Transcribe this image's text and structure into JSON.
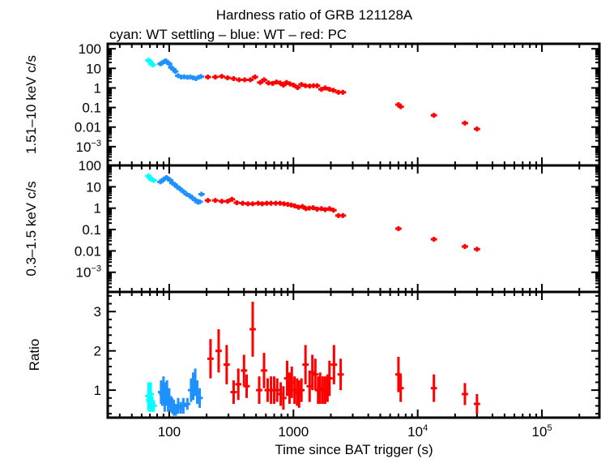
{
  "chart_data": {
    "type": "scatter",
    "title": "Hardness ratio of GRB 121128A",
    "subtitle": "cyan: WT settling – blue: WT – red: PC",
    "xlabel": "Time since BAT trigger (s)",
    "xscale": "log",
    "xlim": [
      32,
      290000
    ],
    "x_ticks": [
      {
        "v": 100,
        "label": "100"
      },
      {
        "v": 1000,
        "label": "1000"
      },
      {
        "v": 10000,
        "label": "10",
        "sup": "4"
      },
      {
        "v": 100000,
        "label": "10",
        "sup": "5"
      }
    ],
    "colors": {
      "cyan": "#00ffff",
      "blue": "#1e90ff",
      "red": "#ff0000"
    },
    "panels": [
      {
        "name": "hard",
        "ylabel": "1.51–10 keV c/s",
        "yscale": "log",
        "ylim": [
          0.00011,
          180
        ],
        "y_ticks": [
          {
            "v": 100,
            "label": "100"
          },
          {
            "v": 10,
            "label": "10"
          },
          {
            "v": 1,
            "label": "1"
          },
          {
            "v": 0.1,
            "label": "0.1"
          },
          {
            "v": 0.01,
            "label": "0.01"
          },
          {
            "v": 0.001,
            "label": "10",
            "sup": "−3"
          }
        ],
        "series": [
          {
            "name": "WT settling",
            "color": "cyan",
            "points": [
              [
                68,
                26
              ],
              [
                70,
                22
              ],
              [
                72,
                17
              ],
              [
                74,
                15
              ]
            ]
          },
          {
            "name": "WT",
            "color": "blue",
            "points": [
              [
                85,
                17
              ],
              [
                88,
                19
              ],
              [
                91,
                22
              ],
              [
                94,
                24
              ],
              [
                97,
                20
              ],
              [
                100,
                17
              ],
              [
                104,
                11
              ],
              [
                108,
                9
              ],
              [
                112,
                7
              ],
              [
                118,
                4.2
              ],
              [
                125,
                3.6
              ],
              [
                132,
                3.7
              ],
              [
                140,
                3.5
              ],
              [
                148,
                3.6
              ],
              [
                156,
                3.3
              ],
              [
                164,
                3.0
              ],
              [
                172,
                3.5
              ],
              [
                180,
                3.8
              ]
            ]
          },
          {
            "name": "PC",
            "color": "red",
            "points": [
              [
                205,
                3.6
              ],
              [
                235,
                3.6
              ],
              [
                265,
                3.9
              ],
              [
                295,
                3.3
              ],
              [
                330,
                3.0
              ],
              [
                365,
                2.6
              ],
              [
                405,
                2.6
              ],
              [
                450,
                2.6
              ],
              [
                490,
                3.6
              ],
              [
                540,
                1.9
              ],
              [
                580,
                2.6
              ],
              [
                630,
                1.8
              ],
              [
                680,
                1.7
              ],
              [
                730,
                2.0
              ],
              [
                780,
                1.8
              ],
              [
                830,
                1.4
              ],
              [
                880,
                1.9
              ],
              [
                940,
                1.6
              ],
              [
                1000,
                1.4
              ],
              [
                1080,
                1.05
              ],
              [
                1160,
                1.5
              ],
              [
                1250,
                1.3
              ],
              [
                1350,
                1.25
              ],
              [
                1450,
                1.3
              ],
              [
                1550,
                1.3
              ],
              [
                1680,
                0.85
              ],
              [
                1800,
                1.0
              ],
              [
                1950,
                0.85
              ],
              [
                2100,
                0.75
              ],
              [
                2300,
                0.6
              ],
              [
                2500,
                0.6
              ],
              [
                7000,
                0.14
              ],
              [
                7300,
                0.11
              ],
              [
                13500,
                0.04
              ],
              [
                24000,
                0.016
              ],
              [
                30000,
                0.008
              ]
            ]
          }
        ]
      },
      {
        "name": "soft",
        "ylabel": "0.3–1.5 keV c/s",
        "yscale": "log",
        "ylim": [
          0.00012,
          100
        ],
        "y_ticks": [
          {
            "v": 100,
            "label": "100"
          },
          {
            "v": 10,
            "label": "10"
          },
          {
            "v": 1,
            "label": "1"
          },
          {
            "v": 0.1,
            "label": "0.1"
          },
          {
            "v": 0.01,
            "label": "0.01"
          },
          {
            "v": 0.001,
            "label": "10",
            "sup": "−3"
          }
        ],
        "series": [
          {
            "name": "WT settling",
            "color": "cyan",
            "points": [
              [
                68,
                32
              ],
              [
                70,
                26
              ],
              [
                72,
                22
              ],
              [
                75,
                20
              ]
            ]
          },
          {
            "name": "WT",
            "color": "blue",
            "points": [
              [
                85,
                17
              ],
              [
                88,
                20
              ],
              [
                91,
                23
              ],
              [
                95,
                27
              ],
              [
                98,
                24
              ],
              [
                102,
                20
              ],
              [
                106,
                15
              ],
              [
                110,
                13
              ],
              [
                116,
                10
              ],
              [
                122,
                8
              ],
              [
                130,
                6
              ],
              [
                138,
                4.5
              ],
              [
                146,
                3.8
              ],
              [
                154,
                3.0
              ],
              [
                162,
                2.4
              ],
              [
                170,
                1.9
              ],
              [
                176,
                2.0
              ],
              [
                182,
                4.5
              ]
            ]
          },
          {
            "name": "PC",
            "color": "red",
            "points": [
              [
                205,
                2.3
              ],
              [
                235,
                2.3
              ],
              [
                265,
                2.1
              ],
              [
                295,
                2.1
              ],
              [
                320,
                2.6
              ],
              [
                350,
                1.8
              ],
              [
                390,
                1.7
              ],
              [
                430,
                1.6
              ],
              [
                470,
                1.6
              ],
              [
                520,
                1.7
              ],
              [
                560,
                1.6
              ],
              [
                610,
                1.7
              ],
              [
                660,
                1.7
              ],
              [
                720,
                1.7
              ],
              [
                780,
                1.7
              ],
              [
                840,
                1.6
              ],
              [
                900,
                1.5
              ],
              [
                960,
                1.4
              ],
              [
                1020,
                1.3
              ],
              [
                1100,
                1.1
              ],
              [
                1180,
                1.2
              ],
              [
                1260,
                0.95
              ],
              [
                1340,
                1.0
              ],
              [
                1440,
                1.05
              ],
              [
                1550,
                0.9
              ],
              [
                1680,
                0.95
              ],
              [
                1800,
                0.85
              ],
              [
                1950,
                0.95
              ],
              [
                2100,
                0.8
              ],
              [
                2300,
                0.45
              ],
              [
                2500,
                0.45
              ],
              [
                7000,
                0.11
              ],
              [
                13500,
                0.035
              ],
              [
                24000,
                0.016
              ],
              [
                30000,
                0.012
              ]
            ]
          }
        ]
      },
      {
        "name": "ratio",
        "ylabel": "Ratio",
        "yscale": "linear",
        "ylim": [
          0.3,
          3.5
        ],
        "y_ticks": [
          {
            "v": 1,
            "label": "1"
          },
          {
            "v": 2,
            "label": "2"
          },
          {
            "v": 3,
            "label": "3"
          }
        ],
        "series": [
          {
            "name": "WT settling",
            "color": "cyan",
            "points": [
              [
                68,
                0.85,
                0.35
              ],
              [
                69,
                0.75,
                0.3
              ],
              [
                70,
                0.7,
                0.25
              ],
              [
                71,
                0.9,
                0.3
              ],
              [
                73,
                0.65,
                0.2
              ],
              [
                75,
                0.6,
                0.15
              ]
            ]
          },
          {
            "name": "WT",
            "color": "blue",
            "points": [
              [
                86,
                0.95,
                0.3
              ],
              [
                88,
                0.9,
                0.3
              ],
              [
                90,
                1.0,
                0.35
              ],
              [
                92,
                0.75,
                0.3
              ],
              [
                94,
                0.9,
                0.3
              ],
              [
                96,
                0.95,
                0.3
              ],
              [
                98,
                0.7,
                0.25
              ],
              [
                100,
                0.8,
                0.25
              ],
              [
                103,
                0.65,
                0.2
              ],
              [
                106,
                0.6,
                0.2
              ],
              [
                109,
                0.55,
                0.2
              ],
              [
                113,
                0.5,
                0.15
              ],
              [
                118,
                0.6,
                0.2
              ],
              [
                124,
                0.55,
                0.15
              ],
              [
                130,
                0.6,
                0.2
              ],
              [
                140,
                0.65,
                0.15
              ],
              [
                150,
                1.0,
                0.3
              ],
              [
                156,
                1.1,
                0.35
              ],
              [
                162,
                1.2,
                0.35
              ],
              [
                168,
                0.95,
                0.3
              ],
              [
                176,
                0.8,
                0.25
              ]
            ]
          },
          {
            "name": "PC",
            "color": "red",
            "points": [
              [
                215,
                1.8,
                0.5
              ],
              [
                250,
                2.0,
                0.55
              ],
              [
                290,
                1.65,
                0.5
              ],
              [
                330,
                0.95,
                0.3
              ],
              [
                360,
                1.15,
                0.4
              ],
              [
                400,
                1.5,
                0.4
              ],
              [
                420,
                1.1,
                0.3
              ],
              [
                470,
                2.55,
                0.7
              ],
              [
                530,
                1.0,
                0.35
              ],
              [
                580,
                1.5,
                0.45
              ],
              [
                620,
                1.0,
                0.3
              ],
              [
                660,
                1.0,
                0.35
              ],
              [
                700,
                1.0,
                0.35
              ],
              [
                740,
                1.0,
                0.3
              ],
              [
                790,
                0.9,
                0.3
              ],
              [
                830,
                0.8,
                0.3
              ],
              [
                890,
                1.3,
                0.45
              ],
              [
                930,
                1.05,
                0.4
              ],
              [
                970,
                1.2,
                0.4
              ],
              [
                1020,
                1.0,
                0.35
              ],
              [
                1070,
                0.95,
                0.35
              ],
              [
                1110,
                0.9,
                0.35
              ],
              [
                1160,
                1.0,
                0.3
              ],
              [
                1250,
                1.65,
                0.5
              ],
              [
                1350,
                1.1,
                0.4
              ],
              [
                1420,
                1.45,
                0.45
              ],
              [
                1500,
                1.4,
                0.4
              ],
              [
                1580,
                1.0,
                0.35
              ],
              [
                1640,
                1.05,
                0.4
              ],
              [
                1720,
                1.0,
                0.35
              ],
              [
                1800,
                1.0,
                0.35
              ],
              [
                1880,
                1.05,
                0.35
              ],
              [
                1950,
                1.3,
                0.45
              ],
              [
                2120,
                1.65,
                0.5
              ],
              [
                2400,
                1.4,
                0.4
              ],
              [
                7000,
                1.4,
                0.45
              ],
              [
                7300,
                1.05,
                0.35
              ],
              [
                13500,
                1.05,
                0.35
              ],
              [
                24000,
                0.9,
                0.28
              ],
              [
                30000,
                0.65,
                0.25
              ]
            ]
          }
        ]
      }
    ]
  }
}
